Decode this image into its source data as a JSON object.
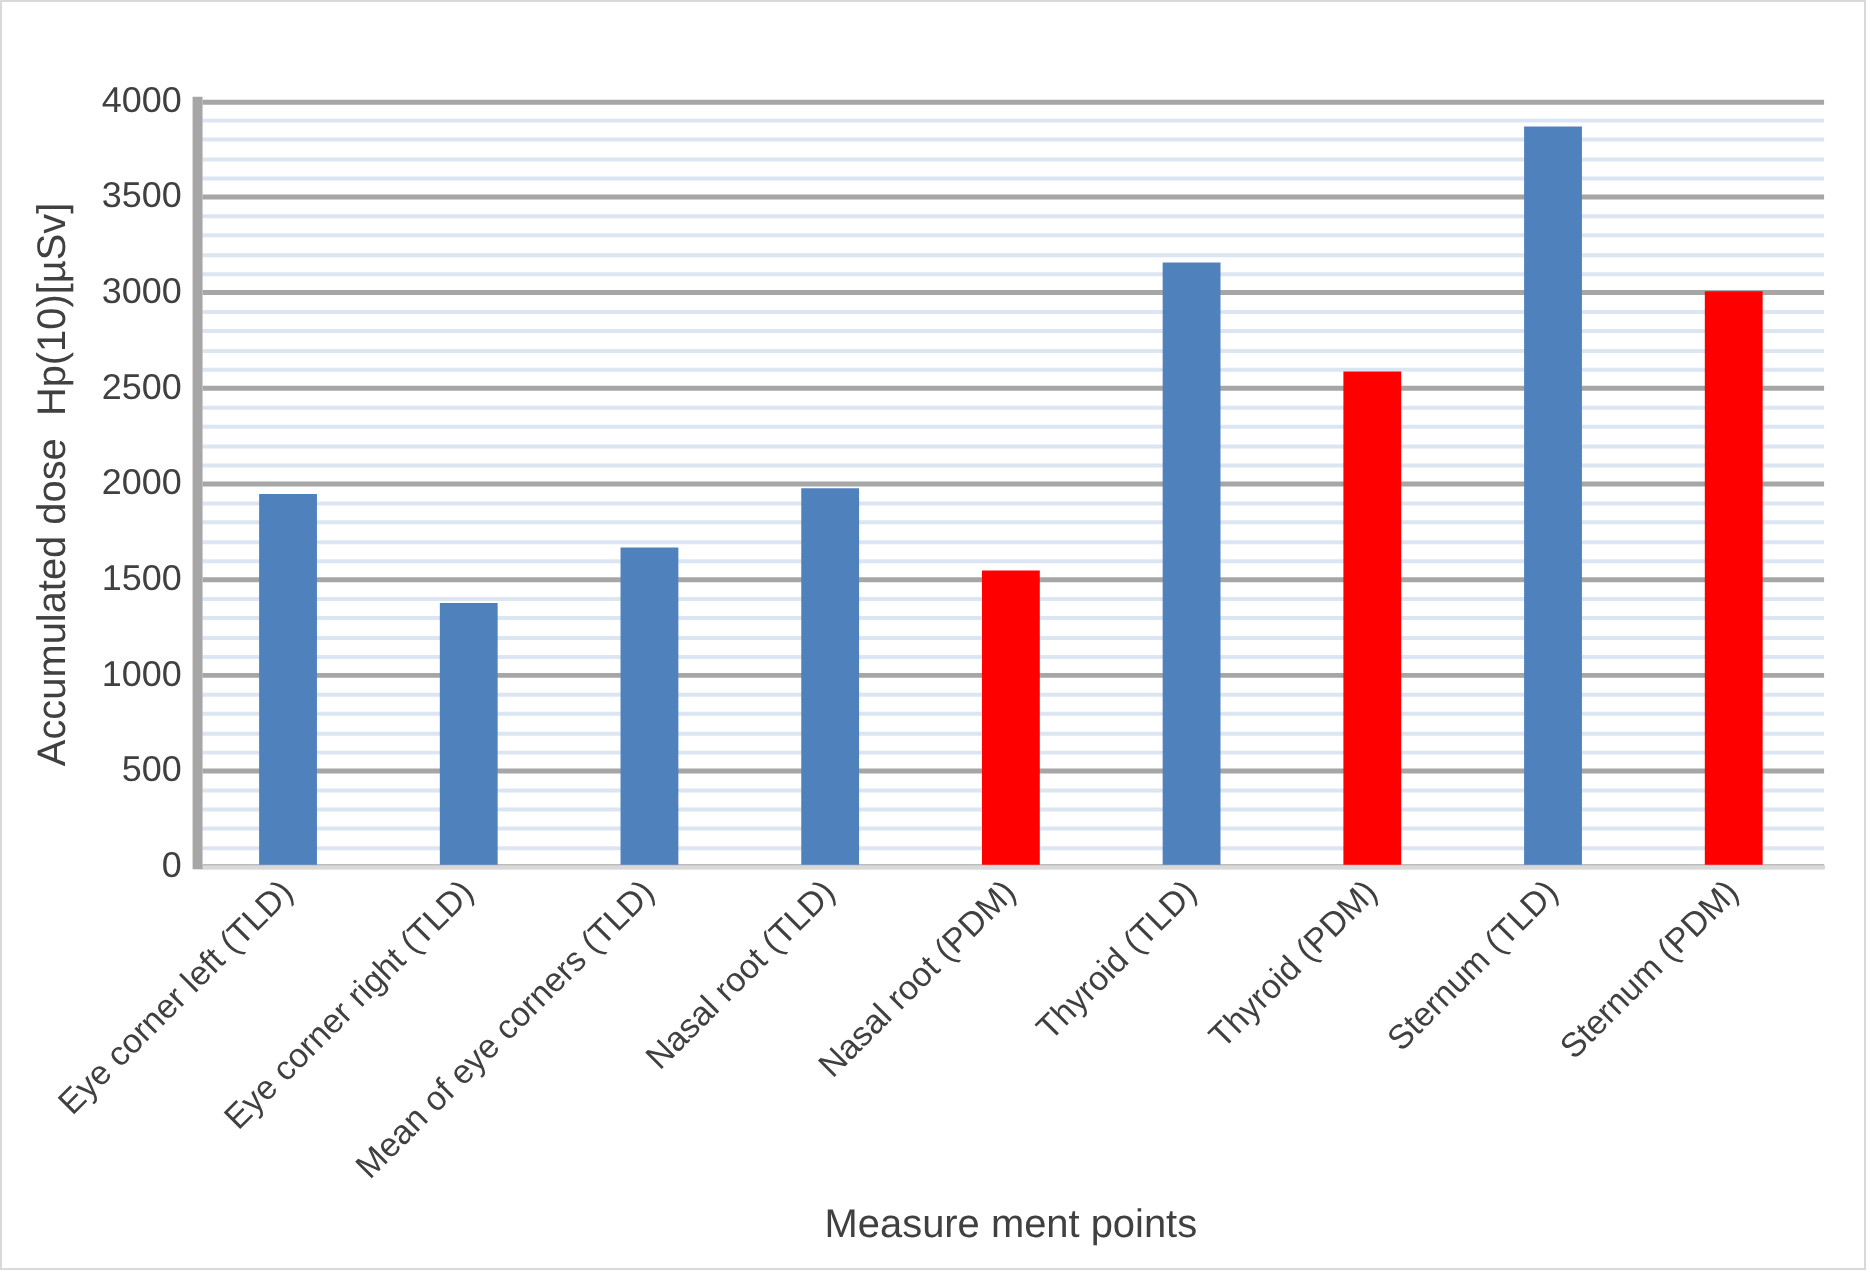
{
  "chart_data": {
    "type": "bar",
    "xlabel": "Measure ment points",
    "ylabel": "Accumulated dose  Hp(10)[µSv]",
    "categories": [
      "Eye corner left (TLD)",
      "Eye corner right (TLD)",
      "Mean of eye corners (TLD)",
      "Nasal root (TLD)",
      "Nasal root (PDM)",
      "Thyroid (TLD)",
      "Thyroid (PDM)",
      "Sternum (TLD)",
      "Sternum (PDM)"
    ],
    "values": [
      1950,
      1380,
      1670,
      1980,
      1550,
      3160,
      2590,
      3870,
      3010
    ],
    "colors": [
      "#4f81bd",
      "#4f81bd",
      "#4f81bd",
      "#4f81bd",
      "#ff0000",
      "#4f81bd",
      "#ff0000",
      "#4f81bd",
      "#ff0000"
    ],
    "ylim": [
      0,
      4000
    ],
    "yticks": [
      0,
      {
        "value": 100,
        "label": null
      },
      {
        "value": 200,
        "label": null
      },
      {
        "value": 300,
        "label": null
      },
      {
        "value": 400,
        "label": null
      },
      500,
      {
        "value": 600,
        "label": null
      },
      {
        "value": 700,
        "label": null
      },
      {
        "value": 800,
        "label": null
      },
      {
        "value": 900,
        "label": null
      },
      1000,
      {
        "value": 1100,
        "label": null
      },
      {
        "value": 1200,
        "label": null
      },
      {
        "value": 1300,
        "label": null
      },
      {
        "value": 1400,
        "label": null
      },
      1500,
      {
        "value": 1600,
        "label": null
      },
      {
        "value": 1700,
        "label": null
      },
      {
        "value": 1800,
        "label": null
      },
      {
        "value": 1900,
        "label": null
      },
      2000,
      {
        "value": 2100,
        "label": null
      },
      {
        "value": 2200,
        "label": null
      },
      {
        "value": 2300,
        "label": null
      },
      {
        "value": 2400,
        "label": null
      },
      2500,
      {
        "value": 2600,
        "label": null
      },
      {
        "value": 2700,
        "label": null
      },
      {
        "value": 2800,
        "label": null
      },
      {
        "value": 2900,
        "label": null
      },
      3000,
      {
        "value": 3100,
        "label": null
      },
      {
        "value": 3200,
        "label": null
      },
      {
        "value": 3300,
        "label": null
      },
      {
        "value": 3400,
        "label": null
      },
      3500,
      {
        "value": 3600,
        "label": null
      },
      {
        "value": 3700,
        "label": null
      },
      {
        "value": 3800,
        "label": null
      },
      {
        "value": 3900,
        "label": null
      },
      4000
    ],
    "grid": "y",
    "legend": false
  }
}
